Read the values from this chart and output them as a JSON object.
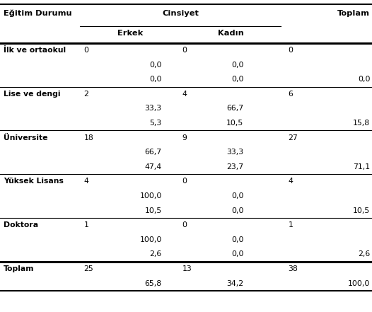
{
  "rows": [
    {
      "label": "İlk ve ortaokul",
      "sub_rows": [
        [
          "0",
          "0",
          "0"
        ],
        [
          "0,0",
          "0,0",
          ""
        ],
        [
          "0,0",
          "0,0",
          "0,0"
        ]
      ]
    },
    {
      "label": "Lise ve dengi",
      "sub_rows": [
        [
          "2",
          "4",
          "6"
        ],
        [
          "33,3",
          "66,7",
          ""
        ],
        [
          "5,3",
          "10,5",
          "15,8"
        ]
      ]
    },
    {
      "label": "Üniversite",
      "sub_rows": [
        [
          "18",
          "9",
          "27"
        ],
        [
          "66,7",
          "33,3",
          ""
        ],
        [
          "47,4",
          "23,7",
          "71,1"
        ]
      ]
    },
    {
      "label": "Yüksek Lisans",
      "sub_rows": [
        [
          "4",
          "0",
          "4"
        ],
        [
          "100,0",
          "0,0",
          ""
        ],
        [
          "10,5",
          "0,0",
          "10,5"
        ]
      ]
    },
    {
      "label": "Doktora",
      "sub_rows": [
        [
          "1",
          "0",
          "1"
        ],
        [
          "100,0",
          "0,0",
          ""
        ],
        [
          "2,6",
          "0,0",
          "2,6"
        ]
      ]
    },
    {
      "label": "Toplam",
      "sub_rows": [
        [
          "25",
          "13",
          "38"
        ],
        [
          "65,8",
          "34,2",
          "100,0"
        ]
      ]
    }
  ],
  "figsize": [
    5.26,
    4.41
  ],
  "dpi": 100
}
